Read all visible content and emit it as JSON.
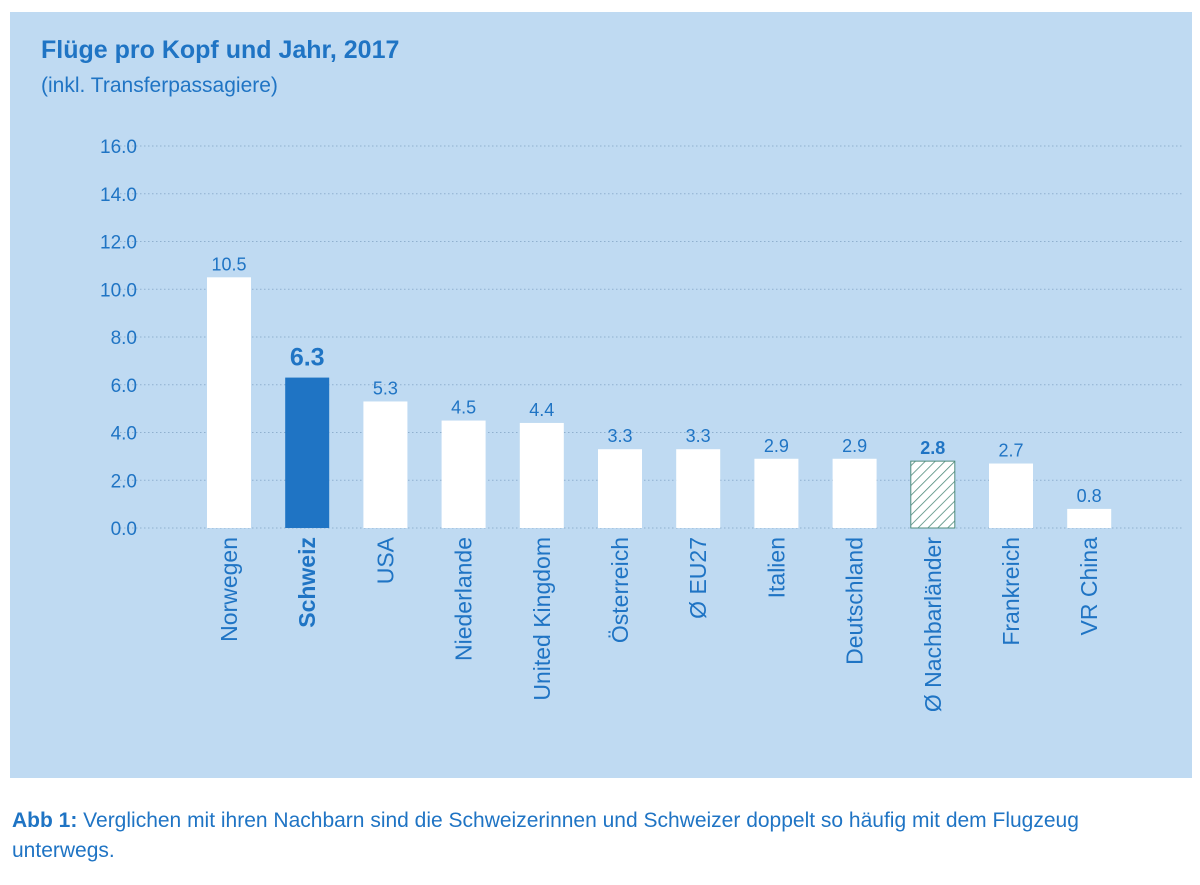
{
  "colors": {
    "panel_background": "#bfdaf2",
    "accent": "#1f74c4",
    "bar_default": "#ffffff",
    "gridline": "#8fb0cf"
  },
  "chart_data": {
    "type": "bar",
    "title": "Flüge pro Kopf und Jahr, 2017",
    "subtitle": "(inkl. Transferpassagiere)",
    "xlabel": "",
    "ylabel": "",
    "ylim": [
      0,
      16
    ],
    "yticks": [
      "0.0",
      "2.0",
      "4.0",
      "6.0",
      "8.0",
      "10.0",
      "12.0",
      "14.0",
      "16.0"
    ],
    "grid": "dotted horizontal",
    "categories": [
      "Norwegen",
      "Schweiz",
      "USA",
      "Niederlande",
      "United Kingdom",
      "Österreich",
      "Ø EU27",
      "Italien",
      "Deutschland",
      "Ø Nachbarländer",
      "Frankreich",
      "VR China"
    ],
    "values": [
      10.5,
      6.3,
      5.3,
      4.5,
      4.4,
      3.3,
      3.3,
      2.9,
      2.9,
      2.8,
      2.7,
      0.8
    ],
    "value_labels": [
      "10.5",
      "6.3",
      "5.3",
      "4.5",
      "4.4",
      "3.3",
      "3.3",
      "2.9",
      "2.9",
      "2.8",
      "2.7",
      "0.8"
    ],
    "bar_styles": [
      "plain",
      "highlight",
      "plain",
      "plain",
      "plain",
      "plain",
      "plain",
      "plain",
      "plain",
      "hatched",
      "plain",
      "plain"
    ]
  },
  "caption": {
    "label": "Abb 1:",
    "text": " Verglichen mit ihren Nachbarn sind die Schweizerinnen und Schweizer doppelt so häufig mit dem Flugzeug unterwegs."
  }
}
